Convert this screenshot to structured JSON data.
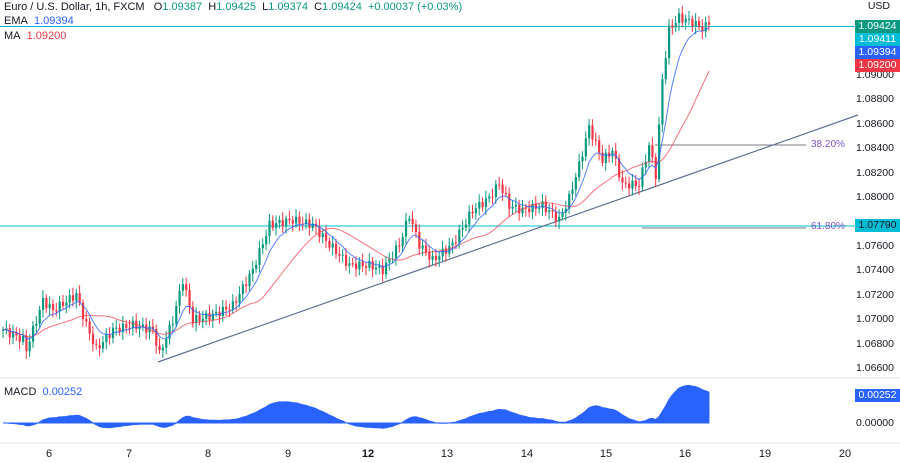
{
  "header": {
    "symbol": "Euro / U.S. Dollar, 1h, FXCM",
    "open_label": "O",
    "open": "1.09387",
    "high_label": "H",
    "high": "1.09425",
    "low_label": "L",
    "low": "1.09374",
    "close_label": "C",
    "close": "1.09424",
    "change": "+0.00037 (+0.03%)"
  },
  "indicators": {
    "ema_label": "EMA",
    "ema_value": "1.09394",
    "ma_label": "MA",
    "ma_value": "1.09200",
    "macd_label": "MACD",
    "macd_value": "0.00252"
  },
  "currency": "USD",
  "price_axis": [
    "1.09000",
    "1.08800",
    "1.08600",
    "1.08400",
    "1.08200",
    "1.08000",
    "1.07600",
    "1.07400",
    "1.07200",
    "1.07000",
    "1.06800",
    "1.06600"
  ],
  "price_tags": {
    "last": "1.09424",
    "ema_price": "1.09411",
    "ema": "1.09394",
    "ma": "1.09200",
    "level": "1.07790",
    "macd": "0.00252"
  },
  "macd_axis": "0.00000",
  "fib": {
    "f382": "38.20%",
    "f618": "61.80%"
  },
  "time_axis": [
    "6",
    "7",
    "8",
    "9",
    "12",
    "13",
    "14",
    "15",
    "16",
    "19",
    "20"
  ],
  "colors": {
    "up": "#089981",
    "down": "#f23645",
    "ema": "#2962ff",
    "ma": "#f23645",
    "level": "#00bcd4",
    "macd": "#2962ff"
  },
  "chart_data": {
    "type": "candlestick",
    "timeframe": "1h",
    "keypoints": [
      [
        0,
        1.0692
      ],
      [
        6,
        1.0684
      ],
      [
        7,
        1.0676
      ],
      [
        10,
        1.07
      ],
      [
        12,
        1.0716
      ],
      [
        15,
        1.0708
      ],
      [
        22,
        1.0721
      ],
      [
        25,
        1.0696
      ],
      [
        28,
        1.0676
      ],
      [
        33,
        1.0692
      ],
      [
        39,
        1.0696
      ],
      [
        45,
        1.0692
      ],
      [
        47,
        1.0672
      ],
      [
        51,
        1.07
      ],
      [
        54,
        1.0733
      ],
      [
        57,
        1.07
      ],
      [
        63,
        1.0704
      ],
      [
        69,
        1.0712
      ],
      [
        75,
        1.0741
      ],
      [
        80,
        1.0778
      ],
      [
        87,
        1.0782
      ],
      [
        93,
        1.0778
      ],
      [
        98,
        1.0762
      ],
      [
        104,
        1.0745
      ],
      [
        110,
        1.0745
      ],
      [
        114,
        1.0741
      ],
      [
        119,
        1.0762
      ],
      [
        122,
        1.0786
      ],
      [
        125,
        1.0762
      ],
      [
        129,
        1.0749
      ],
      [
        135,
        1.0762
      ],
      [
        141,
        1.079
      ],
      [
        146,
        1.08
      ],
      [
        149,
        1.0812
      ],
      [
        152,
        1.0794
      ],
      [
        156,
        1.079
      ],
      [
        162,
        1.0794
      ],
      [
        167,
        1.0782
      ],
      [
        170,
        1.08
      ],
      [
        173,
        1.0827
      ],
      [
        176,
        1.0858
      ],
      [
        180,
        1.0831
      ],
      [
        183,
        1.0839
      ],
      [
        186,
        1.0811
      ],
      [
        191,
        1.0811
      ],
      [
        194,
        1.0843
      ],
      [
        196,
        1.0819
      ],
      [
        198,
        1.0897
      ],
      [
        200,
        1.0938
      ],
      [
        203,
        1.0948
      ],
      [
        207,
        1.0944
      ],
      [
        210,
        1.0939
      ],
      [
        212,
        1.0942
      ]
    ]
  }
}
